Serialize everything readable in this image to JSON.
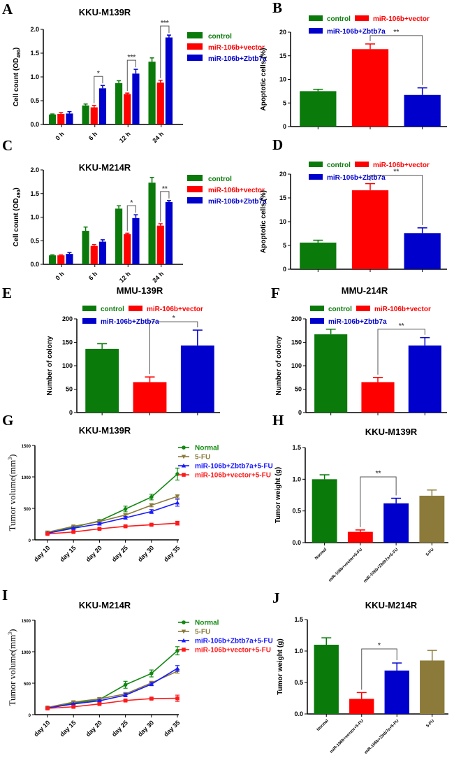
{
  "colors": {
    "green": "#0a7a0a",
    "red": "#ff0000",
    "blue": "#0000cc",
    "olive": "#8b7a3a",
    "lineBlue": "#1a1aff",
    "lineRed": "#ff1a1a",
    "lineGreen": "#118811"
  },
  "chart_data": [
    {
      "panel": "A",
      "type": "bar",
      "title": "KKU-M139R",
      "ylabel": "Cell count (OD490)",
      "ylim": [
        0,
        2.0
      ],
      "yticks": [
        0.0,
        0.5,
        1.0,
        1.5,
        2.0
      ],
      "ytick_format": 1,
      "categories": [
        "0 h",
        "6 h",
        "12 h",
        "24 h"
      ],
      "series": [
        {
          "name": "control",
          "color": "green",
          "values": [
            0.21,
            0.4,
            0.87,
            1.32
          ],
          "errors": [
            0.01,
            0.03,
            0.05,
            0.08
          ]
        },
        {
          "name": "miR-106b+vector",
          "color": "red",
          "values": [
            0.22,
            0.36,
            0.64,
            0.88
          ],
          "errors": [
            0.03,
            0.04,
            0.02,
            0.05
          ]
        },
        {
          "name": "miR-106b+Zbtb7a",
          "color": "blue",
          "values": [
            0.23,
            0.76,
            1.07,
            1.83
          ],
          "errors": [
            0.04,
            0.06,
            0.09,
            0.05
          ]
        }
      ],
      "significance": [
        {
          "group": 1,
          "from": 1,
          "to": 2,
          "label": "*"
        },
        {
          "group": 2,
          "from": 1,
          "to": 2,
          "label": "***"
        },
        {
          "group": 3,
          "from": 1,
          "to": 2,
          "label": "***"
        }
      ],
      "legend": "right"
    },
    {
      "panel": "B",
      "type": "bar",
      "title": "",
      "ylabel": "Apoptotic cells (%)",
      "ylim": [
        0,
        20
      ],
      "yticks": [
        0,
        5,
        10,
        15,
        20
      ],
      "ytick_format": 0,
      "categories": [
        "control",
        "miR-106b+vector",
        "miR-106b+Zbtb7a"
      ],
      "series": [
        {
          "name": "Apoptotic cells",
          "values": [
            7.5,
            16.4,
            6.7
          ],
          "errors": [
            0.4,
            1.1,
            1.5
          ],
          "colors": [
            "green",
            "red",
            "blue"
          ]
        }
      ],
      "significance": [
        {
          "from": 1,
          "to": 2,
          "label": "**"
        }
      ],
      "legend": "top"
    },
    {
      "panel": "C",
      "type": "bar",
      "title": "KKU-M214R",
      "ylabel": "Cell count (OD490)",
      "ylim": [
        0,
        2.0
      ],
      "yticks": [
        0.0,
        0.5,
        1.0,
        1.5,
        2.0
      ],
      "ytick_format": 1,
      "categories": [
        "0 h",
        "6 h",
        "12 h",
        "24 h"
      ],
      "series": [
        {
          "name": "control",
          "color": "green",
          "values": [
            0.19,
            0.71,
            1.18,
            1.73
          ],
          "errors": [
            0.01,
            0.08,
            0.06,
            0.11
          ]
        },
        {
          "name": "miR-106b+vector",
          "color": "red",
          "values": [
            0.19,
            0.39,
            0.64,
            0.82
          ],
          "errors": [
            0.01,
            0.03,
            0.02,
            0.04
          ]
        },
        {
          "name": "miR-106b+Zbtb7a",
          "color": "blue",
          "values": [
            0.22,
            0.48,
            0.98,
            1.32
          ],
          "errors": [
            0.03,
            0.04,
            0.07,
            0.03
          ]
        }
      ],
      "significance": [
        {
          "group": 2,
          "from": 1,
          "to": 2,
          "label": "*"
        },
        {
          "group": 3,
          "from": 1,
          "to": 2,
          "label": "**"
        }
      ],
      "legend": "right"
    },
    {
      "panel": "D",
      "type": "bar",
      "title": "",
      "ylabel": "Apoptotic cells (%)",
      "ylim": [
        0,
        20
      ],
      "yticks": [
        0,
        5,
        10,
        15,
        20
      ],
      "ytick_format": 0,
      "categories": [
        "control",
        "miR-106b+vector",
        "miR-106b+Zbtb7a"
      ],
      "series": [
        {
          "name": "Apoptotic cells",
          "values": [
            5.6,
            16.6,
            7.6
          ],
          "errors": [
            0.5,
            1.4,
            1.1
          ],
          "colors": [
            "green",
            "red",
            "blue"
          ]
        }
      ],
      "significance": [
        {
          "from": 1,
          "to": 2,
          "label": "**"
        }
      ],
      "legend": "top"
    },
    {
      "panel": "E",
      "type": "bar",
      "title": "MMU-139R",
      "ylabel": "Number of colony",
      "ylim": [
        0,
        200
      ],
      "yticks": [
        0,
        50,
        100,
        150,
        200
      ],
      "ytick_format": 0,
      "categories": [
        "control",
        "miR-106b+vector",
        "miR-106b+Zbtb7a"
      ],
      "series": [
        {
          "name": "Number of colony",
          "values": [
            136,
            65,
            143
          ],
          "errors": [
            11,
            11,
            33
          ],
          "colors": [
            "green",
            "red",
            "blue"
          ]
        }
      ],
      "significance": [
        {
          "from": 1,
          "to": 2,
          "label": "*"
        }
      ],
      "legend": "top"
    },
    {
      "panel": "F",
      "type": "bar",
      "title": "MMU-214R",
      "ylabel": "Number of colony",
      "ylim": [
        0,
        200
      ],
      "yticks": [
        0,
        50,
        100,
        150,
        200
      ],
      "ytick_format": 0,
      "categories": [
        "control",
        "miR-106b+vector",
        "miR-106b+Zbtb7a"
      ],
      "series": [
        {
          "name": "Number of colony",
          "values": [
            167,
            65,
            143
          ],
          "errors": [
            11,
            10,
            17
          ],
          "colors": [
            "green",
            "red",
            "blue"
          ]
        }
      ],
      "significance": [
        {
          "from": 1,
          "to": 2,
          "label": "**"
        }
      ],
      "legend": "top"
    },
    {
      "panel": "G",
      "type": "line",
      "title": "KKU-M139R",
      "ylabel": "Tumor volume(mm3)",
      "ylim": [
        0,
        1500
      ],
      "yticks": [
        0,
        500,
        1000,
        1500
      ],
      "x": [
        "day 10",
        "day 15",
        "day 20",
        "day 25",
        "day 30",
        "day 35"
      ],
      "series": [
        {
          "name": "Normal",
          "color": "lineGreen",
          "marker": "circle",
          "values": [
            110,
            200,
            300,
            490,
            680,
            1045
          ],
          "errors": [
            15,
            15,
            20,
            45,
            45,
            95
          ]
        },
        {
          "name": "5-FU",
          "color": "olive",
          "marker": "tri-down",
          "values": [
            120,
            215,
            290,
            395,
            550,
            690
          ],
          "errors": [
            10,
            12,
            15,
            20,
            25,
            25
          ]
        },
        {
          "name": "miR-106b+Zbtb7a+5-FU",
          "color": "lineBlue",
          "marker": "tri-up",
          "values": [
            105,
            185,
            255,
            350,
            450,
            590
          ],
          "errors": [
            10,
            12,
            15,
            20,
            30,
            55
          ]
        },
        {
          "name": "miR-106b+vector+5-FU",
          "color": "lineRed",
          "marker": "square",
          "values": [
            95,
            125,
            175,
            215,
            240,
            265
          ],
          "errors": [
            8,
            10,
            12,
            15,
            15,
            30
          ]
        }
      ],
      "legend": "right"
    },
    {
      "panel": "H",
      "type": "bar",
      "title": "KKU-M139R",
      "ylabel": "Tumor weight (g)",
      "ylim": [
        0,
        1.5
      ],
      "yticks": [
        0.0,
        0.5,
        1.0,
        1.5
      ],
      "ytick_format": 1,
      "categories": [
        "Normal",
        "miR-106b+vector+5-FU",
        "miR-106b+Zbtb7a+5-FU",
        "5-FU"
      ],
      "series": [
        {
          "name": "Tumor weight",
          "values": [
            1.0,
            0.17,
            0.62,
            0.74
          ],
          "errors": [
            0.07,
            0.03,
            0.08,
            0.09
          ],
          "colors": [
            "green",
            "red",
            "blue",
            "olive"
          ]
        }
      ],
      "significance": [
        {
          "from": 1,
          "to": 2,
          "label": "**"
        }
      ]
    },
    {
      "panel": "I",
      "type": "line",
      "title": "KKU-M214R",
      "ylabel": "Tumor volume(mm3)",
      "ylim": [
        0,
        1500
      ],
      "yticks": [
        0,
        500,
        1000,
        1500
      ],
      "x": [
        "day 10",
        "day 15",
        "day 20",
        "day 25",
        "day 30",
        "day 35"
      ],
      "series": [
        {
          "name": "Normal",
          "color": "lineGreen",
          "marker": "circle",
          "values": [
            110,
            185,
            240,
            475,
            655,
            1015
          ],
          "errors": [
            15,
            20,
            25,
            55,
            55,
            65
          ]
        },
        {
          "name": "5-FU",
          "color": "olive",
          "marker": "tri-down",
          "values": [
            115,
            200,
            250,
            330,
            505,
            690
          ],
          "errors": [
            10,
            12,
            15,
            20,
            25,
            30
          ]
        },
        {
          "name": "miR-106b+Zbtb7a+5-FU",
          "color": "lineBlue",
          "marker": "tri-up",
          "values": [
            105,
            170,
            220,
            310,
            485,
            735
          ],
          "errors": [
            10,
            12,
            15,
            25,
            25,
            45
          ]
        },
        {
          "name": "miR-106b+vector+5-FU",
          "color": "lineRed",
          "marker": "square",
          "values": [
            100,
            125,
            170,
            225,
            255,
            260
          ],
          "errors": [
            8,
            10,
            12,
            15,
            15,
            50
          ]
        }
      ],
      "legend": "right"
    },
    {
      "panel": "J",
      "type": "bar",
      "title": "KKU-M214R",
      "ylabel": "Tumor weight (g)",
      "ylim": [
        0,
        1.5
      ],
      "yticks": [
        0.0,
        0.5,
        1.0,
        1.5
      ],
      "ytick_format": 1,
      "categories": [
        "Normal",
        "miR-106b+vector+5-FU",
        "miR-106b+Zbtb7a+5-FU",
        "5-FU"
      ],
      "series": [
        {
          "name": "Tumor weight",
          "values": [
            1.1,
            0.24,
            0.69,
            0.85
          ],
          "errors": [
            0.11,
            0.1,
            0.12,
            0.16
          ],
          "colors": [
            "green",
            "red",
            "blue",
            "olive"
          ]
        }
      ],
      "significance": [
        {
          "from": 1,
          "to": 2,
          "label": "*"
        }
      ]
    }
  ]
}
